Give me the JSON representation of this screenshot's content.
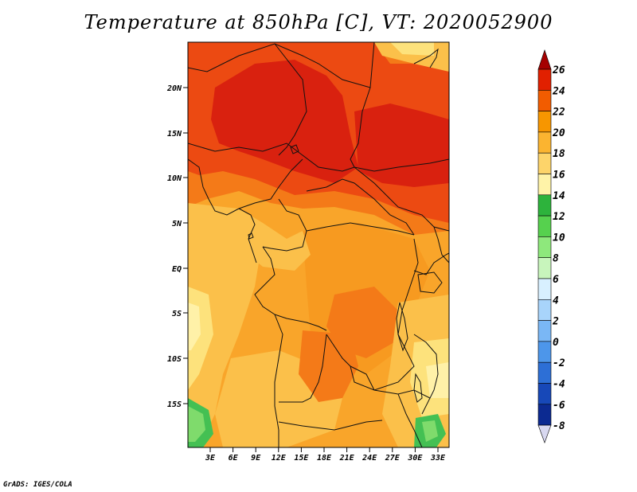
{
  "title": "Temperature at 850hPa [C], VT: 2020052900",
  "credit": "GrADS: IGES/COLA",
  "map": {
    "lat_labels": [
      "20N",
      "15N",
      "10N",
      "5N",
      "EQ",
      "5S",
      "10S",
      "15S"
    ],
    "lon_labels": [
      "3E",
      "6E",
      "9E",
      "12E",
      "15E",
      "18E",
      "21E",
      "24E",
      "27E",
      "30E",
      "33E"
    ]
  },
  "colorbar": {
    "levels": [
      "26",
      "24",
      "22",
      "20",
      "18",
      "16",
      "14",
      "12",
      "10",
      "8",
      "6",
      "4",
      "2",
      "0",
      "-2",
      "-4",
      "-6",
      "-8"
    ],
    "colors": [
      "#a50000",
      "#e12000",
      "#f25c00",
      "#f79600",
      "#fbb430",
      "#fdd46a",
      "#fff3a8",
      "#2db33c",
      "#56d14e",
      "#8ee87c",
      "#c8f5bc",
      "#d8f0ff",
      "#a8d4fb",
      "#7ab7f5",
      "#4d96ea",
      "#2d6fd6",
      "#1748b8",
      "#0c2a91",
      "#0a156a"
    ]
  },
  "field_colors": {
    "deep_red": "#d9210f",
    "red_orange": "#ec4a12",
    "orange": "#f47a18",
    "light_orange": "#f9a52a",
    "amber": "#fbc04a",
    "pale_yellow": "#fde27c",
    "cream": "#fff1a8",
    "green": "#44c053",
    "light_green": "#7fdb6c"
  }
}
